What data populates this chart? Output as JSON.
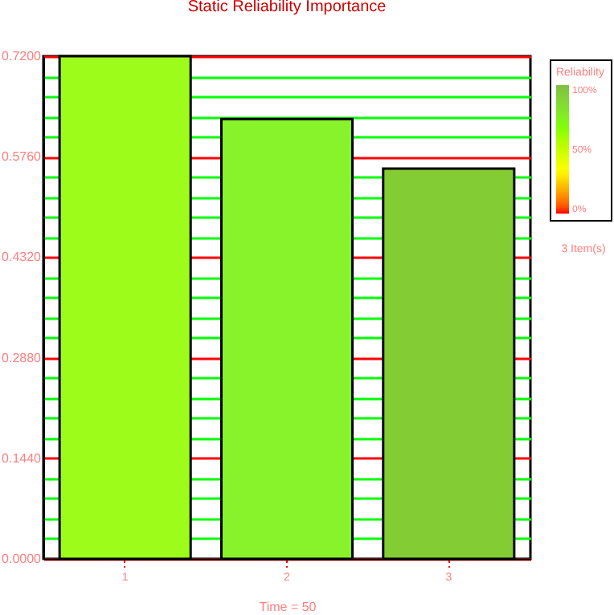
{
  "chart_data": {
    "type": "bar",
    "title": "Static Reliability Importance",
    "xlabel": "Time = 50",
    "categories": [
      "1",
      "2",
      "3"
    ],
    "values": [
      0.72,
      0.63,
      0.559
    ],
    "colors": [
      "#9efc1a",
      "#88f22a",
      "#84cc33"
    ],
    "ylim": [
      0,
      0.72
    ],
    "yticks": [
      {
        "value": 0,
        "label": "0.0000"
      },
      {
        "value": 0.0288,
        "label": null
      },
      {
        "value": 0.0576,
        "label": null
      },
      {
        "value": 0.0864,
        "label": null
      },
      {
        "value": 0.1152,
        "label": null
      },
      {
        "value": 0.144,
        "label": "0.1440"
      },
      {
        "value": 0.1728,
        "label": null
      },
      {
        "value": 0.2016,
        "label": null
      },
      {
        "value": 0.2304,
        "label": null
      },
      {
        "value": 0.2592,
        "label": null
      },
      {
        "value": 0.288,
        "label": "0.2880"
      },
      {
        "value": 0.3168,
        "label": null
      },
      {
        "value": 0.3456,
        "label": null
      },
      {
        "value": 0.3744,
        "label": null
      },
      {
        "value": 0.4032,
        "label": null
      },
      {
        "value": 0.432,
        "label": "0.4320"
      },
      {
        "value": 0.4608,
        "label": null
      },
      {
        "value": 0.4896,
        "label": null
      },
      {
        "value": 0.5184,
        "label": null
      },
      {
        "value": 0.5472,
        "label": null
      },
      {
        "value": 0.576,
        "label": "0.5760"
      },
      {
        "value": 0.6048,
        "label": null
      },
      {
        "value": 0.6336,
        "label": null
      },
      {
        "value": 0.6624,
        "label": null
      },
      {
        "value": 0.6912,
        "label": null
      },
      {
        "value": 0.72,
        "label": "0.7200"
      }
    ],
    "grid": true,
    "clabel": "Reliability",
    "clim": [
      0,
      100
    ],
    "cticks": [
      {
        "value": 0,
        "label": "0%"
      },
      {
        "value": 50,
        "label": "50%"
      },
      {
        "value": 100,
        "label": "100%"
      }
    ],
    "annotations": [
      "3 Item(s)"
    ]
  }
}
